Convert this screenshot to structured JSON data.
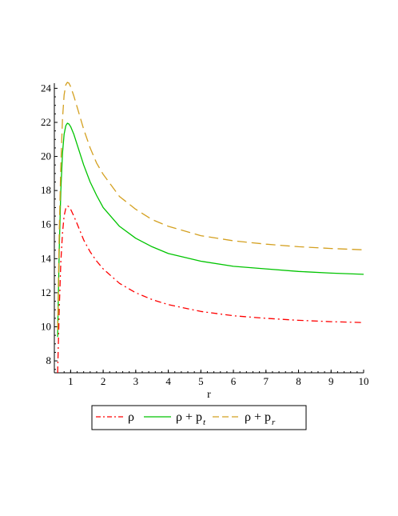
{
  "chart_data": {
    "type": "line",
    "title": "",
    "xlabel": "r",
    "ylabel": "",
    "xlim": [
      0.5,
      10
    ],
    "ylim": [
      7.3,
      24.3
    ],
    "x_ticks": [
      1,
      2,
      3,
      4,
      5,
      6,
      7,
      8,
      9,
      10
    ],
    "y_ticks": [
      8,
      10,
      12,
      14,
      16,
      18,
      20,
      22,
      24
    ],
    "grid": false,
    "legend_position": "bottom",
    "x": [
      0.6,
      0.65,
      0.7,
      0.75,
      0.8,
      0.85,
      0.9,
      0.95,
      1.0,
      1.1,
      1.2,
      1.4,
      1.6,
      1.8,
      2.0,
      2.5,
      3.0,
      3.5,
      4.0,
      5.0,
      6.0,
      7.0,
      8.0,
      9.0,
      10.0
    ],
    "series": [
      {
        "name_main": "ρ",
        "name_sub": "",
        "color": "#ff0000",
        "dash": "dashdot",
        "values": [
          7.3,
          11.0,
          13.8,
          15.5,
          16.5,
          16.95,
          17.1,
          17.05,
          16.9,
          16.5,
          16.05,
          15.1,
          14.4,
          13.85,
          13.4,
          12.55,
          12.0,
          11.6,
          11.3,
          10.9,
          10.65,
          10.5,
          10.38,
          10.3,
          10.25
        ]
      },
      {
        "name_main": "ρ + p",
        "name_sub": "t",
        "color": "#00c400",
        "dash": "solid",
        "values": [
          9.4,
          14.5,
          18.0,
          20.2,
          21.3,
          21.8,
          21.95,
          21.9,
          21.75,
          21.3,
          20.7,
          19.5,
          18.5,
          17.7,
          17.0,
          15.9,
          15.2,
          14.7,
          14.3,
          13.85,
          13.55,
          13.4,
          13.25,
          13.15,
          13.08
        ]
      },
      {
        "name_main": "ρ + p",
        "name_sub": "r",
        "color": "#d4a020",
        "dash": "dashed",
        "values": [
          9.8,
          15.5,
          19.5,
          22.2,
          23.6,
          24.2,
          24.35,
          24.3,
          24.1,
          23.55,
          22.9,
          21.6,
          20.5,
          19.6,
          18.95,
          17.65,
          16.9,
          16.3,
          15.9,
          15.35,
          15.05,
          14.85,
          14.7,
          14.6,
          14.52
        ]
      }
    ]
  }
}
